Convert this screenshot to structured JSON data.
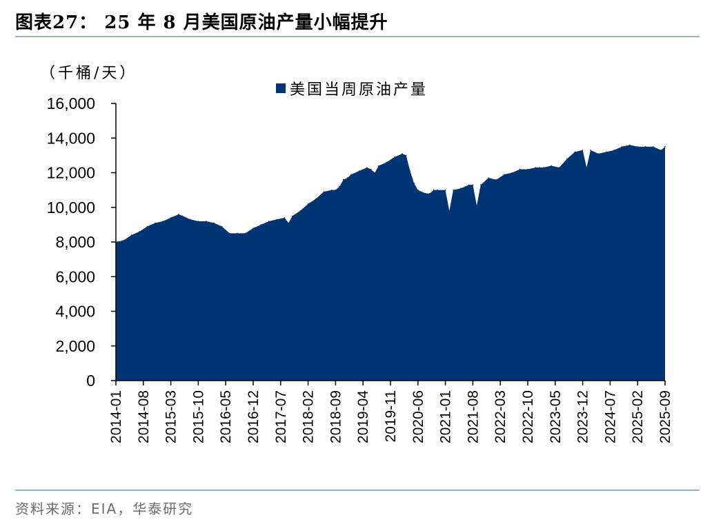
{
  "title": "图表27：  25 年  8 月美国原油产量小幅提升",
  "source": "资料来源：EIA，华泰研究",
  "colors": {
    "series": "#003472",
    "axis": "#000000",
    "rule": "#9aaec2"
  },
  "chart_data": {
    "type": "area",
    "unit": "（千桶/天）",
    "ylim": [
      0,
      16000
    ],
    "yticks": [
      0,
      2000,
      4000,
      6000,
      8000,
      10000,
      12000,
      14000,
      16000
    ],
    "ytick_labels": [
      "0",
      "2,000",
      "4,000",
      "6,000",
      "8,000",
      "10,000",
      "12,000",
      "14,000",
      "16,000"
    ],
    "xtick_labels": [
      "2014-01",
      "2014-08",
      "2015-03",
      "2015-10",
      "2016-05",
      "2016-12",
      "2017-07",
      "2018-02",
      "2018-09",
      "2019-04",
      "2019-11",
      "2020-06",
      "2021-01",
      "2021-08",
      "2022-03",
      "2022-10",
      "2023-05",
      "2023-12",
      "2024-07",
      "2025-02",
      "2025-09"
    ],
    "grid": false,
    "legend_position": "top-center",
    "series": [
      {
        "name": "美国当周原油产量",
        "x": [
          "2014-01",
          "2014-03",
          "2014-05",
          "2014-07",
          "2014-09",
          "2014-11",
          "2015-01",
          "2015-03",
          "2015-05",
          "2015-06",
          "2015-08",
          "2015-10",
          "2015-12",
          "2016-02",
          "2016-04",
          "2016-06",
          "2016-08",
          "2016-10",
          "2016-12",
          "2017-02",
          "2017-04",
          "2017-06",
          "2017-08",
          "2017-09",
          "2017-10",
          "2017-12",
          "2018-02",
          "2018-04",
          "2018-06",
          "2018-08",
          "2018-09",
          "2018-10",
          "2018-11",
          "2018-12",
          "2019-01",
          "2019-03",
          "2019-05",
          "2019-06",
          "2019-07",
          "2019-08",
          "2019-10",
          "2019-12",
          "2020-02",
          "2020-03",
          "2020-04",
          "2020-05",
          "2020-06",
          "2020-08",
          "2020-09",
          "2020-10",
          "2020-11",
          "2021-01",
          "2021-02",
          "2021-03",
          "2021-05",
          "2021-07",
          "2021-08",
          "2021-09",
          "2021-10",
          "2021-12",
          "2022-02",
          "2022-04",
          "2022-06",
          "2022-08",
          "2022-10",
          "2022-12",
          "2023-01",
          "2023-02",
          "2023-04",
          "2023-06",
          "2023-08",
          "2023-10",
          "2023-12",
          "2024-01",
          "2024-02",
          "2024-04",
          "2024-06",
          "2024-08",
          "2024-10",
          "2024-12",
          "2025-02",
          "2025-04",
          "2025-06",
          "2025-08",
          "2025-09"
        ],
        "values": [
          8000,
          8100,
          8400,
          8600,
          8900,
          9100,
          9200,
          9400,
          9600,
          9500,
          9300,
          9200,
          9200,
          9100,
          8900,
          8500,
          8500,
          8500,
          8800,
          9000,
          9200,
          9300,
          9400,
          9100,
          9500,
          9800,
          10200,
          10500,
          10900,
          11000,
          11000,
          11200,
          11600,
          11700,
          11900,
          12100,
          12300,
          12200,
          12000,
          12400,
          12600,
          12900,
          13100,
          13000,
          12100,
          11400,
          11000,
          10800,
          10800,
          11000,
          11000,
          11000,
          9800,
          11000,
          11100,
          11300,
          11300,
          10100,
          11300,
          11700,
          11600,
          11900,
          12000,
          12200,
          12200,
          12300,
          12300,
          12300,
          12400,
          12300,
          12800,
          13200,
          13300,
          12300,
          13300,
          13100,
          13200,
          13300,
          13500,
          13600,
          13500,
          13500,
          13500,
          13300,
          13500
        ]
      }
    ]
  }
}
